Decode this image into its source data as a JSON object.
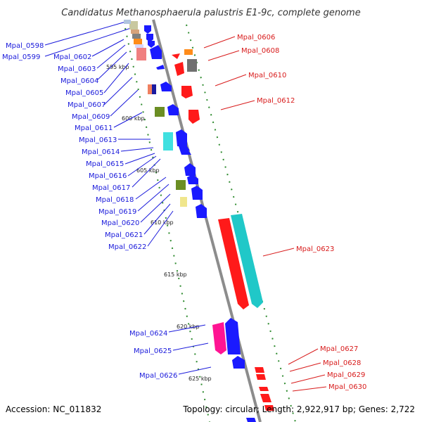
{
  "title": "Candidatus Methanosphaerula palustris E1-9c, complete genome",
  "footer": {
    "accession": "Accession: NC_011832",
    "summary": "Topology: circular; Length: 2,922,917 bp; Genes: 2,722"
  },
  "colors": {
    "forward_label": "#1a1adb",
    "reverse_label": "#d81b1b",
    "backbone": "#8c8c8c",
    "dotted_guides": "#2e8b2e"
  },
  "ticks": [
    "595 kbp",
    "600 kbp",
    "605 kbp",
    "610 kbp",
    "615 kbp",
    "620 kbp",
    "625 kbp"
  ],
  "left_labels": [
    "Mpal_0598",
    "Mpal_0599",
    "Mpal_0602",
    "Mpal_0603",
    "Mpal_0604",
    "Mpal_0605",
    "Mpal_0607",
    "Mpal_0609",
    "Mpal_0611",
    "Mpal_0613",
    "Mpal_0614",
    "Mpal_0615",
    "Mpal_0616",
    "Mpal_0617",
    "Mpal_0618",
    "Mpal_0619",
    "Mpal_0620",
    "Mpal_0621",
    "Mpal_0622",
    "Mpal_0624",
    "Mpal_0625",
    "Mpal_0626"
  ],
  "right_labels": [
    "Mpal_0606",
    "Mpal_0608",
    "Mpal_0610",
    "Mpal_0612",
    "Mpal_0623",
    "Mpal_0627",
    "Mpal_0628",
    "Mpal_0629",
    "Mpal_0630"
  ]
}
